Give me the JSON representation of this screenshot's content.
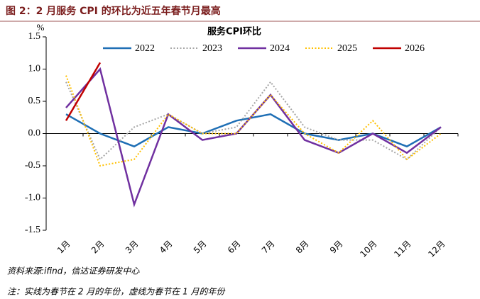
{
  "header": {
    "title": "图 2：2 月服务 CPI 的环比为近五年春节月最高"
  },
  "chart_data": {
    "type": "line",
    "title": "服务CPI环比",
    "y_unit": "%",
    "categories": [
      "1月",
      "2月",
      "3月",
      "4月",
      "5月",
      "6月",
      "7月",
      "8月",
      "9月",
      "10月",
      "11月",
      "12月"
    ],
    "ylim": [
      -1.5,
      1.5
    ],
    "yticks": [
      1.5,
      {
        "value": 1,
        "label": "1.0"
      },
      0.5,
      {
        "value": 0,
        "label": "0.0"
      },
      -0.5,
      {
        "value": -1,
        "label": "-1.0"
      },
      -1.5
    ],
    "series": [
      {
        "name": "2022",
        "color": "#1f6fb5",
        "dash": "solid",
        "values": [
          0.3,
          0.0,
          -0.2,
          0.1,
          0.0,
          0.2,
          0.3,
          0.0,
          -0.1,
          0.0,
          -0.2,
          0.1
        ]
      },
      {
        "name": "2023",
        "color": "#a6a6a6",
        "dash": "dotted",
        "values": [
          0.8,
          -0.4,
          0.1,
          0.3,
          0.0,
          0.1,
          0.8,
          0.1,
          -0.1,
          -0.1,
          -0.4,
          0.1
        ]
      },
      {
        "name": "2024",
        "color": "#7030a0",
        "dash": "solid",
        "values": [
          0.4,
          1.0,
          -1.1,
          0.3,
          -0.1,
          0.0,
          0.6,
          -0.1,
          -0.3,
          0.0,
          -0.3,
          0.1
        ]
      },
      {
        "name": "2025",
        "color": "#ffc000",
        "dash": "dotted",
        "values": [
          0.9,
          -0.5,
          -0.4,
          0.3,
          0.0,
          0.0,
          0.6,
          0.0,
          -0.3,
          0.2,
          -0.4,
          0.0
        ]
      },
      {
        "name": "2026",
        "color": "#c00000",
        "dash": "solid",
        "values": [
          0.2,
          1.1,
          null,
          null,
          null,
          null,
          null,
          null,
          null,
          null,
          null,
          null
        ]
      }
    ]
  },
  "footer": {
    "source": "资料来源:ifind，信达证券研发中心",
    "note": "注：实线为春节在 2 月的年份，虚线为春节在 1 月的年份"
  }
}
